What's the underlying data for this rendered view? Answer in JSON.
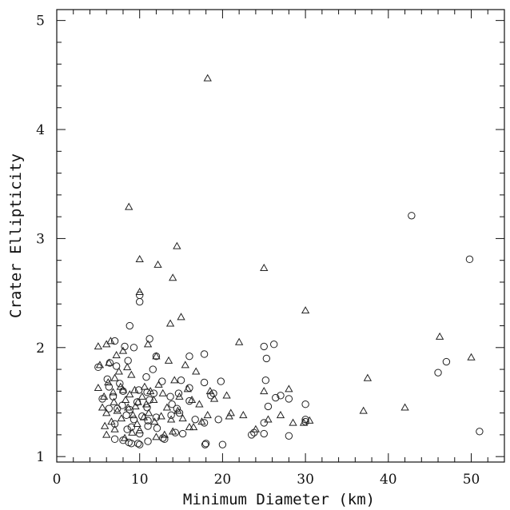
{
  "chart_data": {
    "type": "scatter",
    "xlabel": "Minimum Diameter (km)",
    "ylabel": "Crater Ellipticity",
    "xlim": [
      0,
      54
    ],
    "ylim": [
      0.95,
      5.1
    ],
    "x_ticks": [
      "0",
      "10",
      "20",
      "30",
      "40",
      "50"
    ],
    "y_ticks": [
      "1",
      "2",
      "3",
      "4",
      "5"
    ],
    "grid": false,
    "legend": "none",
    "series": [
      {
        "marker": "triangle",
        "points": [
          [
            18.2,
            4.47
          ],
          [
            8.7,
            3.29
          ],
          [
            10.0,
            2.81
          ],
          [
            14.5,
            2.93
          ],
          [
            12.2,
            2.76
          ],
          [
            14.0,
            2.64
          ],
          [
            25.0,
            2.73
          ],
          [
            10.0,
            2.51
          ],
          [
            15.0,
            2.28
          ],
          [
            13.7,
            2.22
          ],
          [
            30.0,
            2.34
          ],
          [
            46.2,
            2.1
          ],
          [
            50.0,
            1.91
          ],
          [
            22.0,
            2.05
          ],
          [
            37.5,
            1.72
          ],
          [
            5.0,
            2.01
          ],
          [
            6.0,
            2.03
          ],
          [
            6.5,
            2.06
          ],
          [
            7.2,
            1.93
          ],
          [
            8.0,
            1.97
          ],
          [
            5.2,
            1.84
          ],
          [
            6.3,
            1.86
          ],
          [
            7.5,
            1.78
          ],
          [
            8.5,
            1.82
          ],
          [
            9.0,
            1.75
          ],
          [
            11.0,
            2.03
          ],
          [
            12.0,
            1.92
          ],
          [
            13.5,
            1.88
          ],
          [
            15.5,
            1.84
          ],
          [
            16.8,
            1.78
          ],
          [
            5.0,
            1.63
          ],
          [
            5.7,
            1.55
          ],
          [
            6.2,
            1.68
          ],
          [
            6.8,
            1.59
          ],
          [
            7.0,
            1.72
          ],
          [
            7.7,
            1.64
          ],
          [
            8.3,
            1.52
          ],
          [
            8.8,
            1.57
          ],
          [
            9.4,
            1.61
          ],
          [
            9.8,
            1.5
          ],
          [
            10.3,
            1.55
          ],
          [
            10.8,
            1.48
          ],
          [
            11.3,
            1.6
          ],
          [
            11.7,
            1.52
          ],
          [
            12.3,
            1.66
          ],
          [
            12.8,
            1.58
          ],
          [
            13.3,
            1.45
          ],
          [
            14.2,
            1.7
          ],
          [
            14.8,
            1.55
          ],
          [
            15.8,
            1.62
          ],
          [
            16.3,
            1.52
          ],
          [
            17.2,
            1.48
          ],
          [
            18.5,
            1.6
          ],
          [
            19.0,
            1.53
          ],
          [
            20.5,
            1.56
          ],
          [
            21.0,
            1.4
          ],
          [
            22.5,
            1.38
          ],
          [
            25.0,
            1.6
          ],
          [
            27.0,
            1.38
          ],
          [
            28.0,
            1.62
          ],
          [
            5.5,
            1.45
          ],
          [
            6.0,
            1.4
          ],
          [
            6.6,
            1.32
          ],
          [
            7.3,
            1.42
          ],
          [
            7.8,
            1.35
          ],
          [
            8.6,
            1.45
          ],
          [
            9.2,
            1.38
          ],
          [
            9.7,
            1.3
          ],
          [
            10.5,
            1.36
          ],
          [
            11.1,
            1.4
          ],
          [
            11.8,
            1.32
          ],
          [
            12.6,
            1.37
          ],
          [
            13.8,
            1.34
          ],
          [
            14.6,
            1.42
          ],
          [
            15.2,
            1.35
          ],
          [
            16.0,
            1.27
          ],
          [
            17.5,
            1.32
          ],
          [
            18.2,
            1.38
          ],
          [
            20.8,
            1.37
          ],
          [
            24.0,
            1.25
          ],
          [
            25.5,
            1.34
          ],
          [
            28.5,
            1.31
          ],
          [
            29.8,
            1.31
          ],
          [
            30.5,
            1.33
          ],
          [
            37.0,
            1.42
          ],
          [
            42.0,
            1.45
          ],
          [
            6.0,
            1.2
          ],
          [
            7.0,
            1.25
          ],
          [
            8.2,
            1.17
          ],
          [
            9.1,
            1.22
          ],
          [
            10.0,
            1.24
          ],
          [
            12.0,
            1.18
          ],
          [
            13.0,
            1.2
          ],
          [
            14.0,
            1.23
          ],
          [
            16.5,
            1.27
          ],
          [
            5.8,
            1.28
          ],
          [
            6.9,
            1.5
          ],
          [
            8.0,
            1.61
          ],
          [
            9.5,
            1.46
          ],
          [
            10.6,
            1.64
          ]
        ]
      },
      {
        "marker": "circle",
        "points": [
          [
            42.8,
            3.21
          ],
          [
            49.8,
            2.81
          ],
          [
            10.0,
            2.42
          ],
          [
            10.0,
            2.48
          ],
          [
            8.8,
            2.2
          ],
          [
            11.2,
            2.08
          ],
          [
            7.0,
            2.06
          ],
          [
            9.3,
            2.0
          ],
          [
            8.2,
            2.01
          ],
          [
            12.0,
            1.92
          ],
          [
            16.0,
            1.92
          ],
          [
            17.8,
            1.94
          ],
          [
            25.0,
            2.01
          ],
          [
            26.2,
            2.03
          ],
          [
            25.3,
            1.9
          ],
          [
            46.0,
            1.77
          ],
          [
            47.0,
            1.87
          ],
          [
            5.0,
            1.82
          ],
          [
            6.4,
            1.86
          ],
          [
            7.2,
            1.83
          ],
          [
            8.6,
            1.88
          ],
          [
            10.8,
            1.73
          ],
          [
            11.6,
            1.8
          ],
          [
            12.7,
            1.69
          ],
          [
            15.0,
            1.7
          ],
          [
            17.8,
            1.68
          ],
          [
            19.8,
            1.69
          ],
          [
            25.2,
            1.7
          ],
          [
            6.1,
            1.71
          ],
          [
            6.3,
            1.64
          ],
          [
            7.6,
            1.67
          ],
          [
            8.0,
            1.6
          ],
          [
            9.9,
            1.61
          ],
          [
            10.9,
            1.59
          ],
          [
            11.7,
            1.58
          ],
          [
            13.7,
            1.55
          ],
          [
            14.7,
            1.58
          ],
          [
            16.0,
            1.63
          ],
          [
            18.6,
            1.56
          ],
          [
            18.9,
            1.58
          ],
          [
            26.4,
            1.54
          ],
          [
            27.0,
            1.56
          ],
          [
            28.0,
            1.53
          ],
          [
            30.0,
            1.48
          ],
          [
            5.5,
            1.53
          ],
          [
            6.8,
            1.55
          ],
          [
            7.9,
            1.47
          ],
          [
            8.8,
            1.43
          ],
          [
            9.7,
            1.5
          ],
          [
            10.9,
            1.45
          ],
          [
            11.2,
            1.52
          ],
          [
            13.9,
            1.48
          ],
          [
            14.5,
            1.44
          ],
          [
            16.0,
            1.51
          ],
          [
            25.5,
            1.46
          ],
          [
            6.3,
            1.44
          ],
          [
            7.3,
            1.44
          ],
          [
            8.4,
            1.38
          ],
          [
            9.3,
            1.34
          ],
          [
            10.3,
            1.37
          ],
          [
            11.0,
            1.33
          ],
          [
            12.0,
            1.36
          ],
          [
            13.8,
            1.38
          ],
          [
            14.8,
            1.4
          ],
          [
            16.7,
            1.34
          ],
          [
            19.5,
            1.34
          ],
          [
            25.0,
            1.31
          ],
          [
            30.0,
            1.34
          ],
          [
            30.0,
            1.32
          ],
          [
            7.0,
            1.3
          ],
          [
            8.5,
            1.25
          ],
          [
            9.0,
            1.27
          ],
          [
            10.0,
            1.21
          ],
          [
            11.0,
            1.28
          ],
          [
            12.1,
            1.26
          ],
          [
            14.3,
            1.22
          ],
          [
            15.2,
            1.21
          ],
          [
            17.8,
            1.31
          ],
          [
            23.5,
            1.2
          ],
          [
            23.8,
            1.22
          ],
          [
            25.0,
            1.21
          ],
          [
            28.0,
            1.19
          ],
          [
            51.0,
            1.23
          ],
          [
            7.0,
            1.16
          ],
          [
            8.0,
            1.15
          ],
          [
            9.0,
            1.12
          ],
          [
            10.0,
            1.11
          ],
          [
            11.0,
            1.14
          ],
          [
            13.0,
            1.16
          ],
          [
            18.0,
            1.12
          ],
          [
            20.0,
            1.11
          ],
          [
            12.8,
            1.17
          ],
          [
            9.8,
            1.12
          ],
          [
            17.9,
            1.11
          ],
          [
            8.7,
            1.13
          ]
        ]
      }
    ]
  }
}
